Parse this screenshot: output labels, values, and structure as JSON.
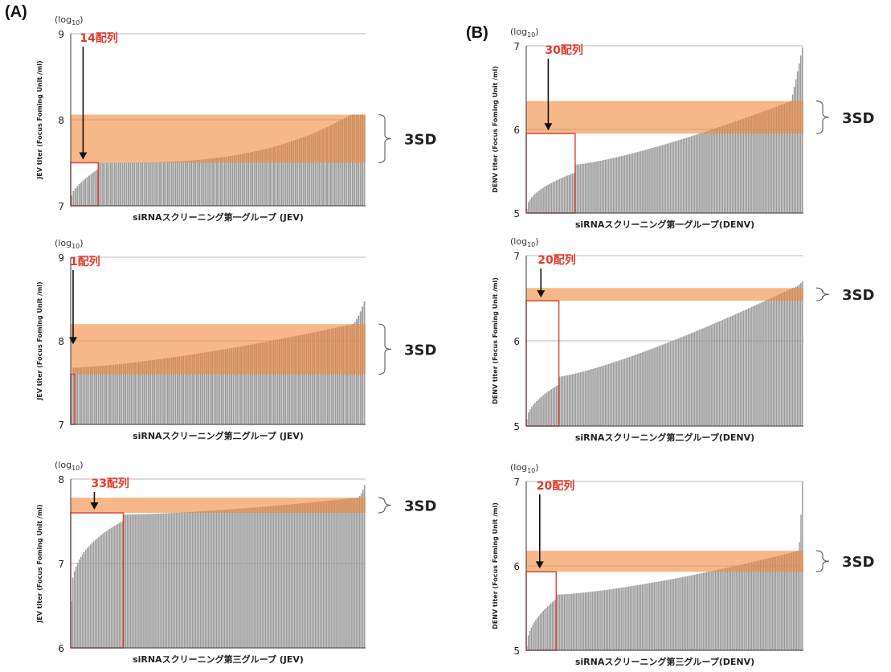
{
  "panels": {
    "A": "(A)",
    "B": "(B)"
  },
  "common": {
    "log_label": "(log10)",
    "log_base": "log",
    "log_sub": "10",
    "sd_label": "3SD"
  },
  "chart_data": [
    {
      "type": "bar",
      "panel": "A",
      "row": 1,
      "ylabel": "JEV titer  (Focus Foming Unit /ml)",
      "xlabel": "siRNAスクリーニング第一グループ (JEV)",
      "ylim": [
        7,
        9
      ],
      "yticks": [
        "7",
        "8",
        "9"
      ],
      "grid": true,
      "n_bars": 150,
      "min": 7.12,
      "max": 8.06,
      "knee": [
        7.42,
        7.5
      ],
      "curve_lo": 0.7,
      "curve_hi": 3,
      "tail": [
        0.95,
        0.5
      ],
      "band": [
        7.5,
        8.06
      ],
      "threshold": 7.5,
      "selected_count": 14,
      "selected_label": "14配列",
      "arrow_target": 7.5
    },
    {
      "type": "bar",
      "panel": "A",
      "row": 2,
      "ylabel": "JEV titer  (Focus Foming Unit /ml)",
      "xlabel": "siRNAスクリーニング第二グループ (JEV)",
      "ylim": [
        7,
        9
      ],
      "yticks": [
        "7",
        "8",
        "9"
      ],
      "grid": true,
      "n_bars": 153,
      "min": 7.6,
      "max": 8.47,
      "knee": [
        7.6,
        7.68
      ],
      "curve_lo": 1,
      "curve_hi": 1.4,
      "tail": [
        0.96,
        0.7
      ],
      "band": [
        7.6,
        8.2
      ],
      "threshold": 7.6,
      "selected_count": 1,
      "selected_label": "1配列",
      "arrow_target": 7.92
    },
    {
      "type": "bar",
      "panel": "A",
      "row": 3,
      "ylabel": "JEV titer  (Focus Foming Unit /ml)",
      "xlabel": "siRNAスクリーニング第三グループ (JEV)",
      "ylim": [
        6,
        8
      ],
      "yticks": [
        "6",
        "7",
        "8"
      ],
      "grid": true,
      "n_bars": 185,
      "min": 6.55,
      "max": 7.93,
      "knee": [
        7.5,
        7.58
      ],
      "curve_lo": 0.35,
      "curve_hi": 1.5,
      "tail": [
        0.97,
        0.55
      ],
      "band": [
        7.6,
        7.78
      ],
      "threshold": 7.6,
      "selected_count": 33,
      "selected_label": "33配列",
      "arrow_target": 7.6
    },
    {
      "type": "bar",
      "panel": "B",
      "row": 1,
      "ylabel": "DENV titer  (Focus Foming Unit /ml)",
      "xlabel": "siRNAスクリーニング第一グループ(DENV)",
      "ylim": [
        5,
        7
      ],
      "yticks": [
        "5",
        "6",
        "7"
      ],
      "grid": true,
      "n_bars": 170,
      "min": 5.05,
      "max": 6.98,
      "knee": [
        5.48,
        5.58
      ],
      "curve_lo": 0.5,
      "curve_hi": 1.3,
      "tail": [
        0.95,
        0.95
      ],
      "band": [
        5.95,
        6.34
      ],
      "threshold": 5.95,
      "selected_count": 30,
      "selected_label": "30配列",
      "arrow_target": 5.95
    },
    {
      "type": "bar",
      "panel": "B",
      "row": 2,
      "ylabel": "DENV titer  (Focus Foming Unit /ml)",
      "xlabel": "siRNAスクリーニング第二グループ(DENV)",
      "ylim": [
        5,
        7
      ],
      "yticks": [
        "5",
        "6",
        "7"
      ],
      "grid": true,
      "n_bars": 170,
      "min": 5.08,
      "max": 6.7,
      "knee": [
        5.48,
        5.58
      ],
      "curve_lo": 0.55,
      "curve_hi": 1.25,
      "tail": [
        0.96,
        0.6
      ],
      "band": [
        6.47,
        6.62
      ],
      "threshold": 6.47,
      "selected_count": 20,
      "selected_label": "20配列",
      "arrow_target": 6.47
    },
    {
      "type": "bar",
      "panel": "B",
      "row": 3,
      "ylabel": "DENV titer  (Focus Foming Unit /ml)",
      "xlabel": "siRNAスクリーニング第三グループ(DENV)",
      "ylim": [
        5,
        7
      ],
      "yticks": [
        "5",
        "6",
        "7"
      ],
      "grid": true,
      "n_bars": 185,
      "min": 5.05,
      "max": 7.0,
      "knee": [
        5.6,
        5.66
      ],
      "curve_lo": 0.5,
      "curve_hi": 1.4,
      "tail": [
        0.985,
        0.8
      ],
      "band": [
        5.93,
        6.18
      ],
      "threshold": 5.93,
      "selected_count": 20,
      "selected_label": "20配列",
      "arrow_target": 5.93
    }
  ]
}
